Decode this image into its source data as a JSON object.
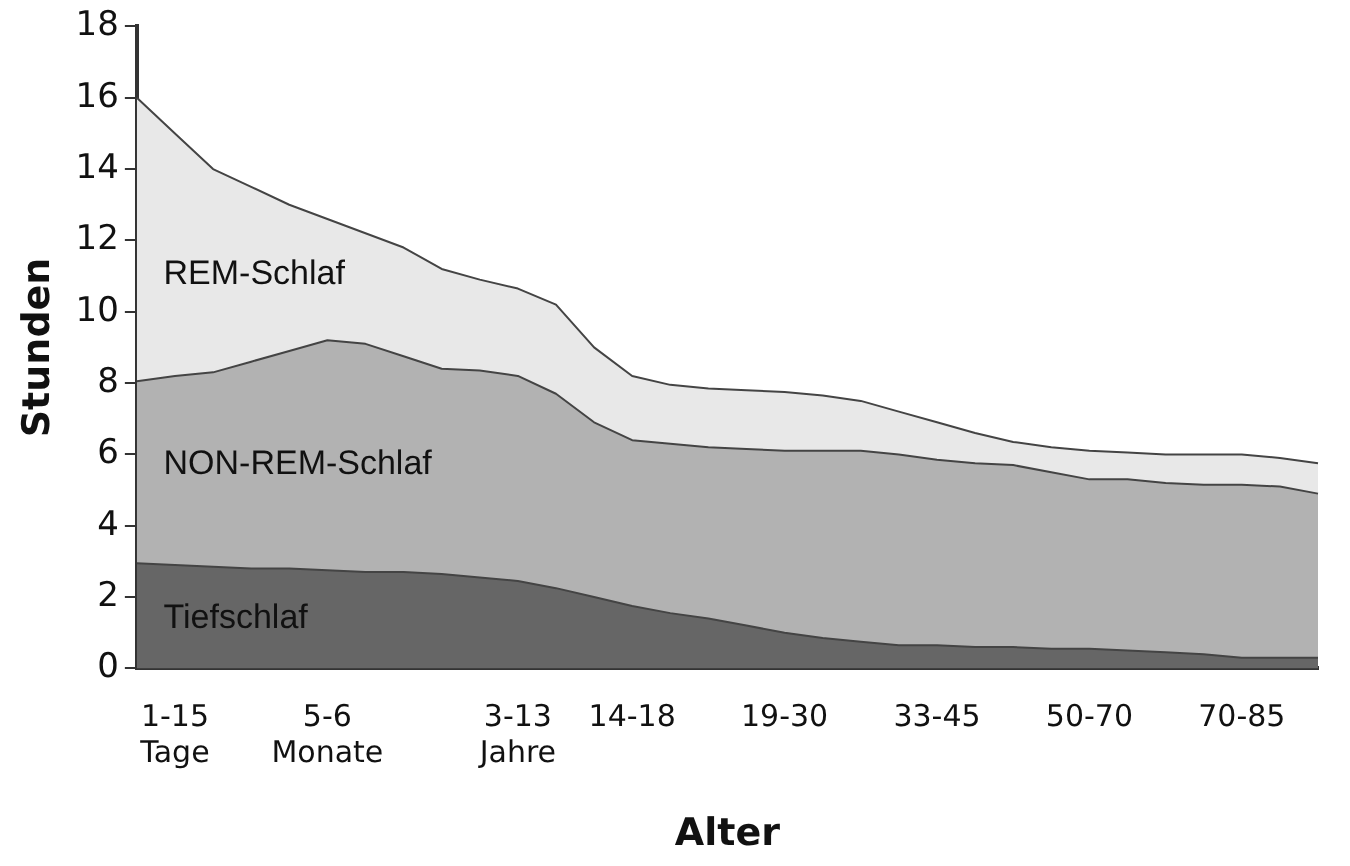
{
  "chart_data": {
    "type": "area",
    "stacked": true,
    "xlabel": "Alter",
    "ylabel": "Stunden",
    "ylim": [
      0,
      18
    ],
    "yticks": [
      0,
      2,
      4,
      6,
      8,
      10,
      12,
      14,
      16,
      18
    ],
    "grid": false,
    "legend": false,
    "categories": [
      null,
      "1-15\nTage",
      null,
      null,
      null,
      "5-6\nMonate",
      null,
      null,
      null,
      null,
      "3-13\nJahre",
      null,
      null,
      "14-18",
      null,
      null,
      null,
      "19-30",
      null,
      null,
      null,
      "33-45",
      null,
      null,
      null,
      "50-70",
      null,
      null,
      null,
      "70-85",
      null,
      null
    ],
    "series": [
      {
        "name": "Tiefschlaf",
        "color": "#666666",
        "values": [
          2.95,
          2.9,
          2.85,
          2.8,
          2.8,
          2.75,
          2.7,
          2.7,
          2.65,
          2.55,
          2.45,
          2.25,
          2.0,
          1.75,
          1.55,
          1.4,
          1.2,
          1.0,
          0.85,
          0.75,
          0.65,
          0.65,
          0.6,
          0.6,
          0.55,
          0.55,
          0.5,
          0.45,
          0.4,
          0.3,
          0.3,
          0.3
        ]
      },
      {
        "name": "NON-REM-Schlaf",
        "color": "#b2b2b2",
        "values": [
          5.1,
          5.3,
          5.45,
          5.8,
          6.1,
          6.45,
          6.4,
          6.05,
          5.75,
          5.8,
          5.75,
          5.45,
          4.9,
          4.65,
          4.75,
          4.8,
          4.95,
          5.1,
          5.25,
          5.35,
          5.35,
          5.2,
          5.15,
          5.1,
          4.95,
          4.75,
          4.8,
          4.75,
          4.75,
          4.85,
          4.8,
          4.6
        ]
      },
      {
        "name": "REM-Schlaf",
        "color": "#e8e8e8",
        "values": [
          7.95,
          6.8,
          5.7,
          4.9,
          4.1,
          3.4,
          3.1,
          3.05,
          2.8,
          2.55,
          2.45,
          2.5,
          2.1,
          1.8,
          1.65,
          1.65,
          1.65,
          1.65,
          1.55,
          1.4,
          1.2,
          1.05,
          0.85,
          0.65,
          0.7,
          0.8,
          0.75,
          0.8,
          0.85,
          0.85,
          0.8,
          0.85
        ]
      }
    ]
  }
}
